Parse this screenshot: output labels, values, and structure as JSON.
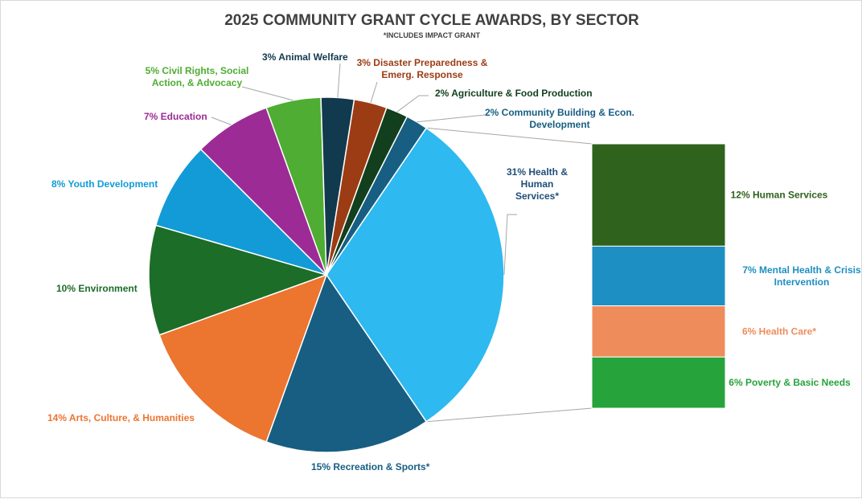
{
  "chart_data": {
    "type": "pie",
    "title": "2025 COMMUNITY GRANT CYCLE AWARDS, BY SECTOR",
    "subtitle": "*INCLUDES IMPACT GRANT",
    "slices": [
      {
        "pct": "31%",
        "label": "Health & Human Services*",
        "lines": [
          "31% Health &",
          "Human",
          "Services*"
        ],
        "value": 31,
        "color": "#2eb9f0",
        "text_color": "#1f4e79"
      },
      {
        "pct": "15%",
        "label": "Recreation & Sports*",
        "lines": [
          "15%  Recreation & Sports*"
        ],
        "value": 15,
        "color": "#175e82",
        "text_color": "#175e82"
      },
      {
        "pct": "14%",
        "label": "Arts, Culture, & Humanities",
        "lines": [
          "14%  Arts, Culture, & Humanities"
        ],
        "value": 14,
        "color": "#ec7530",
        "text_color": "#ec7530"
      },
      {
        "pct": "10%",
        "label": "Environment",
        "lines": [
          "10%  Environment"
        ],
        "value": 10,
        "color": "#1c6d28",
        "text_color": "#1c6d28"
      },
      {
        "pct": "8%",
        "label": "Youth Development",
        "lines": [
          "8%  Youth Development"
        ],
        "value": 8,
        "color": "#129bd6",
        "text_color": "#129bd6"
      },
      {
        "pct": "7%",
        "label": "Education",
        "lines": [
          "7%  Education"
        ],
        "value": 7,
        "color": "#9c2b96",
        "text_color": "#9c2b96"
      },
      {
        "pct": "5%",
        "label": "Civil Rights, Social Action, & Advocacy",
        "lines": [
          "5%  Civil Rights, Social",
          "Action, & Advocacy"
        ],
        "value": 5,
        "color": "#4ead32",
        "text_color": "#4ead32"
      },
      {
        "pct": "3%",
        "label": "Animal Welfare",
        "lines": [
          "3%  Animal Welfare"
        ],
        "value": 3,
        "color": "#123a4e",
        "text_color": "#123a4e"
      },
      {
        "pct": "3%",
        "label": "Disaster Preparedness & Emerg. Response",
        "lines": [
          "3%  Disaster Preparedness &",
          "Emerg. Response"
        ],
        "value": 3,
        "color": "#9c3c14",
        "text_color": "#9c3c14"
      },
      {
        "pct": "2%",
        "label": "Agriculture & Food Production",
        "lines": [
          "2%  Agriculture & Food Production"
        ],
        "value": 2,
        "color": "#123f1e",
        "text_color": "#123f1e"
      },
      {
        "pct": "2%",
        "label": "Community Building & Econ. Development",
        "lines": [
          "2%  Community Building & Econ.",
          "Development"
        ],
        "value": 2,
        "color": "#175e82",
        "text_color": "#175e82"
      }
    ],
    "breakdown": {
      "parent": "Health & Human Services*",
      "segments": [
        {
          "pct": "12%",
          "label": "Human Services",
          "lines": [
            "12%  Human Services"
          ],
          "value": 12,
          "color": "#2f621d",
          "text_color": "#2f621d"
        },
        {
          "pct": "7%",
          "label": "Mental Health & Crisis Intervention",
          "lines": [
            "7%  Mental Health & Crisis",
            "Intervention"
          ],
          "value": 7,
          "color": "#1e8fc2",
          "text_color": "#1e8fc2"
        },
        {
          "pct": "6%",
          "label": "Health Care*",
          "lines": [
            "6%  Health Care*"
          ],
          "value": 6,
          "color": "#ee8c5c",
          "text_color": "#ee8c5c"
        },
        {
          "pct": "6%",
          "label": "Poverty & Basic Needs",
          "lines": [
            "6%  Poverty & Basic Needs"
          ],
          "value": 6,
          "color": "#27a33b",
          "text_color": "#27a33b"
        }
      ]
    },
    "legend": "none"
  }
}
